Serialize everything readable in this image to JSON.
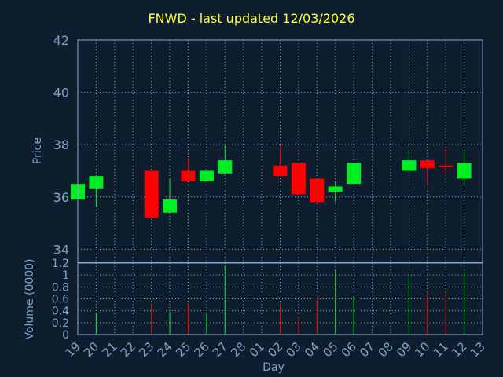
{
  "chart_data": {
    "type": "candlestick",
    "title": "FNWD - last updated 12/03/2026",
    "colors": {
      "background": "#0f1e2e",
      "frame": "#8aa9c8",
      "grid": "#8aa9c8",
      "text": "#7ea3c8",
      "title": "#ffff33",
      "up": "#00ee22",
      "down": "#ff0000"
    },
    "x_tick_labels": [
      "19",
      "20",
      "21",
      "22",
      "23",
      "24",
      "25",
      "26",
      "27",
      "28",
      "01",
      "02",
      "03",
      "04",
      "05",
      "06",
      "07",
      "08",
      "09",
      "10",
      "11",
      "12",
      "13"
    ],
    "xlabel": "Day",
    "price_panel": {
      "ylabel": "Price",
      "ylim": [
        33.5,
        42
      ],
      "y_ticks": [
        34,
        36,
        38,
        40,
        42
      ],
      "candles": [
        {
          "x": 0,
          "open": 35.9,
          "close": 36.5,
          "high": 36.5,
          "low": 35.9
        },
        {
          "x": 1,
          "open": 36.3,
          "close": 36.8,
          "high": 36.8,
          "low": 35.6
        },
        {
          "x": 4,
          "open": 37.0,
          "close": 35.2,
          "high": 37.0,
          "low": 35.2
        },
        {
          "x": 5,
          "open": 35.4,
          "close": 35.9,
          "high": 36.7,
          "low": 35.4
        },
        {
          "x": 6,
          "open": 37.0,
          "close": 36.6,
          "high": 37.5,
          "low": 36.6
        },
        {
          "x": 7,
          "open": 36.6,
          "close": 37.0,
          "high": 37.0,
          "low": 36.6
        },
        {
          "x": 8,
          "open": 36.9,
          "close": 37.4,
          "high": 38.0,
          "low": 36.9
        },
        {
          "x": 11,
          "open": 37.2,
          "close": 36.8,
          "high": 38.0,
          "low": 36.8
        },
        {
          "x": 12,
          "open": 37.3,
          "close": 36.1,
          "high": 37.3,
          "low": 36.1
        },
        {
          "x": 13,
          "open": 36.7,
          "close": 35.8,
          "high": 36.7,
          "low": 35.8
        },
        {
          "x": 14,
          "open": 36.2,
          "close": 36.4,
          "high": 36.6,
          "low": 35.8
        },
        {
          "x": 15,
          "open": 36.5,
          "close": 37.3,
          "high": 37.3,
          "low": 36.5
        },
        {
          "x": 18,
          "open": 37.0,
          "close": 37.4,
          "high": 37.8,
          "low": 36.9
        },
        {
          "x": 19,
          "open": 37.4,
          "close": 37.1,
          "high": 37.4,
          "low": 36.5
        },
        {
          "x": 20,
          "open": 37.2,
          "close": 37.15,
          "high": 37.9,
          "low": 36.9
        },
        {
          "x": 21,
          "open": 36.7,
          "close": 37.3,
          "high": 37.8,
          "low": 36.4
        }
      ]
    },
    "volume_panel": {
      "ylabel": "Volume (0000)",
      "ylim": [
        0,
        1.2
      ],
      "y_ticks": [
        0,
        0.2,
        0.4,
        0.6,
        0.8,
        1,
        1.2
      ],
      "bars": [
        {
          "x": 1,
          "value": 0.35,
          "dir": "up"
        },
        {
          "x": 4,
          "value": 0.52,
          "dir": "down"
        },
        {
          "x": 5,
          "value": 0.38,
          "dir": "up"
        },
        {
          "x": 6,
          "value": 0.52,
          "dir": "down"
        },
        {
          "x": 7,
          "value": 0.35,
          "dir": "up"
        },
        {
          "x": 8,
          "value": 1.16,
          "dir": "up"
        },
        {
          "x": 11,
          "value": 0.52,
          "dir": "down"
        },
        {
          "x": 12,
          "value": 0.3,
          "dir": "down"
        },
        {
          "x": 13,
          "value": 0.62,
          "dir": "down"
        },
        {
          "x": 14,
          "value": 1.08,
          "dir": "up"
        },
        {
          "x": 15,
          "value": 0.65,
          "dir": "up"
        },
        {
          "x": 18,
          "value": 1.0,
          "dir": "up"
        },
        {
          "x": 19,
          "value": 0.7,
          "dir": "down"
        },
        {
          "x": 20,
          "value": 0.72,
          "dir": "down"
        },
        {
          "x": 21,
          "value": 1.1,
          "dir": "up"
        }
      ]
    }
  }
}
